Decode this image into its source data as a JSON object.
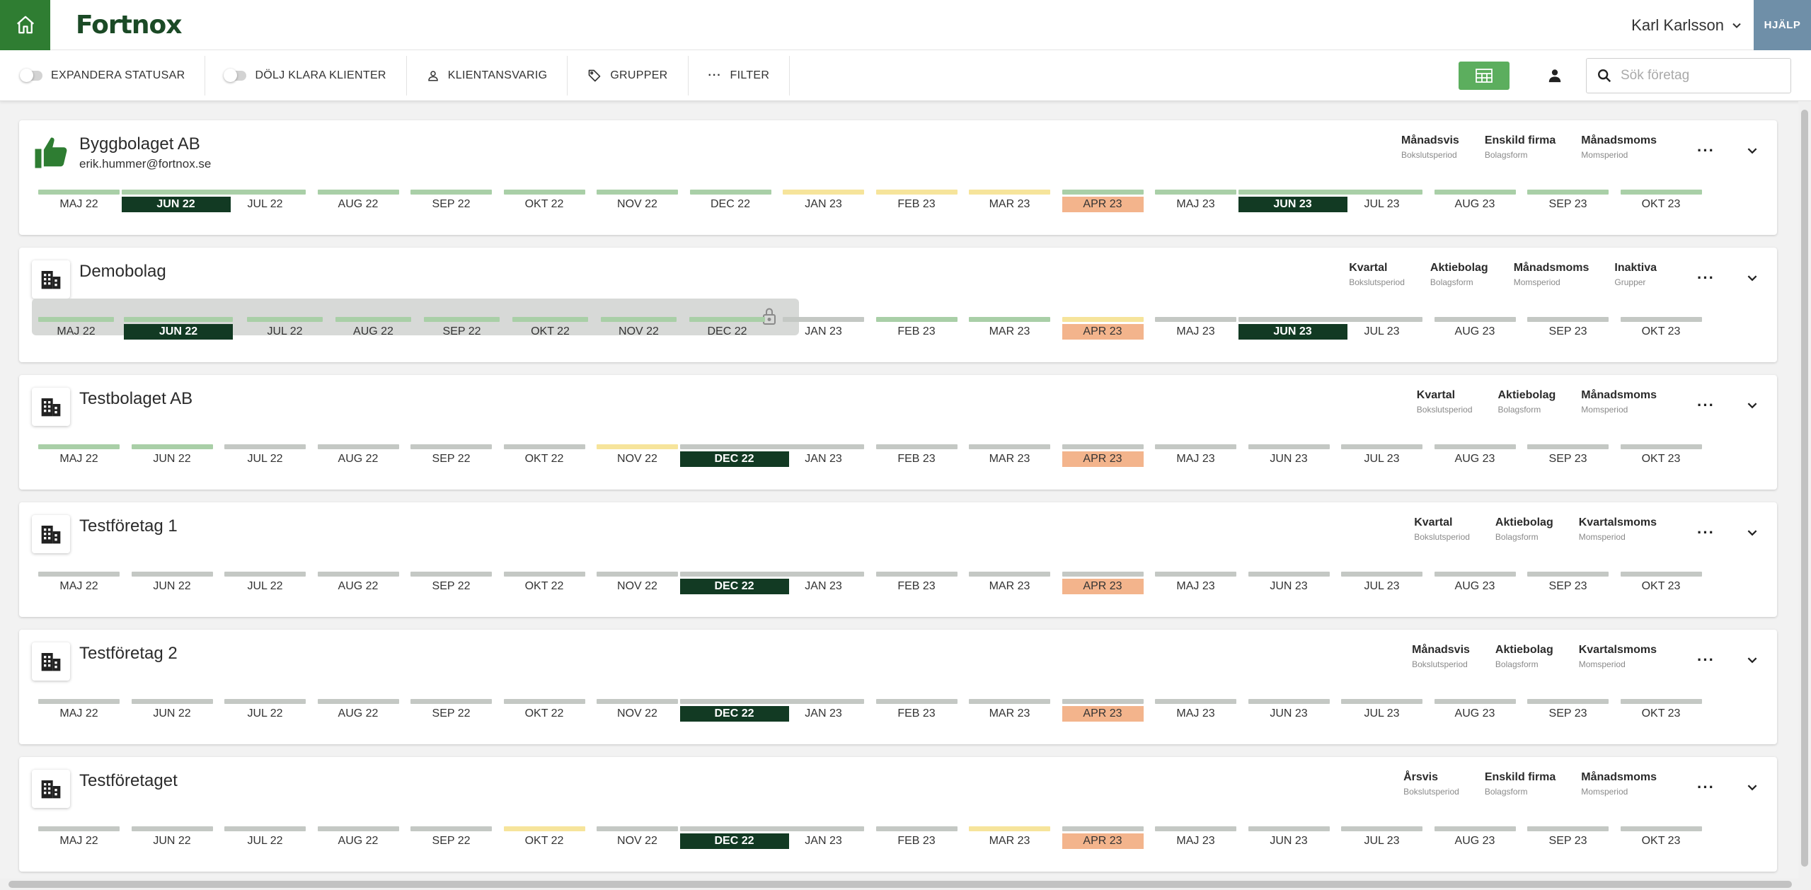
{
  "header": {
    "logo": "Fortnox",
    "user_name": "Karl Karlsson",
    "help_label": "HJÄLP"
  },
  "toolbar": {
    "expand_statuses": "EXPANDERA STATUSAR",
    "hide_done": "DÖLJ KLARA KLIENTER",
    "client_responsible": "KLIENTANSVARIG",
    "groups": "GRUPPER",
    "filter": "FILTER",
    "search_placeholder": "Sök företag"
  },
  "colors": {
    "brand_green": "#2f7d32",
    "current_month": "#123a23",
    "highlight_month": "#f3b48c",
    "status_green": "#a9cfa7",
    "status_yellow": "#f6e49b",
    "status_gray": "#c4c8c4"
  },
  "companies": [
    {
      "name": "Byggbolaget AB",
      "email": "erik.hummer@fortnox.se",
      "icon": "thumbs-up-icon",
      "locked_months": 0,
      "meta": [
        {
          "value": "Månadsvis",
          "label": "Bokslutsperiod"
        },
        {
          "value": "Enskild firma",
          "label": "Bolagsform"
        },
        {
          "value": "Månadsmoms",
          "label": "Momsperiod"
        }
      ],
      "months": [
        {
          "label": "MAJ 22",
          "bar": "green",
          "state": ""
        },
        {
          "label": "JUN 22",
          "bar": "green",
          "state": "current"
        },
        {
          "label": "JUL 22",
          "bar": "green",
          "state": ""
        },
        {
          "label": "AUG 22",
          "bar": "green",
          "state": ""
        },
        {
          "label": "SEP 22",
          "bar": "green",
          "state": ""
        },
        {
          "label": "OKT 22",
          "bar": "green",
          "state": ""
        },
        {
          "label": "NOV 22",
          "bar": "green",
          "state": ""
        },
        {
          "label": "DEC 22",
          "bar": "green",
          "state": ""
        },
        {
          "label": "JAN 23",
          "bar": "yellow",
          "state": ""
        },
        {
          "label": "FEB 23",
          "bar": "yellow",
          "state": ""
        },
        {
          "label": "MAR 23",
          "bar": "yellow",
          "state": ""
        },
        {
          "label": "APR 23",
          "bar": "green",
          "state": "peach"
        },
        {
          "label": "MAJ 23",
          "bar": "green",
          "state": ""
        },
        {
          "label": "JUN 23",
          "bar": "green",
          "state": "current"
        },
        {
          "label": "JUL 23",
          "bar": "green",
          "state": ""
        },
        {
          "label": "AUG 23",
          "bar": "green",
          "state": ""
        },
        {
          "label": "SEP 23",
          "bar": "green",
          "state": ""
        },
        {
          "label": "OKT 23",
          "bar": "green",
          "state": ""
        }
      ]
    },
    {
      "name": "Demobolag",
      "email": "",
      "icon": "building-icon",
      "locked_months": 8,
      "meta": [
        {
          "value": "Kvartal",
          "label": "Bokslutsperiod"
        },
        {
          "value": "Aktiebolag",
          "label": "Bolagsform"
        },
        {
          "value": "Månadsmoms",
          "label": "Momsperiod"
        },
        {
          "value": "Inaktiva",
          "label": "Grupper"
        }
      ],
      "months": [
        {
          "label": "MAJ 22",
          "bar": "green",
          "state": ""
        },
        {
          "label": "JUN 22",
          "bar": "green",
          "state": "current"
        },
        {
          "label": "JUL 22",
          "bar": "green",
          "state": ""
        },
        {
          "label": "AUG 22",
          "bar": "green",
          "state": ""
        },
        {
          "label": "SEP 22",
          "bar": "green",
          "state": ""
        },
        {
          "label": "OKT 22",
          "bar": "green",
          "state": ""
        },
        {
          "label": "NOV 22",
          "bar": "green",
          "state": ""
        },
        {
          "label": "DEC 22",
          "bar": "green",
          "state": ""
        },
        {
          "label": "JAN 23",
          "bar": "gray",
          "state": ""
        },
        {
          "label": "FEB 23",
          "bar": "green",
          "state": ""
        },
        {
          "label": "MAR 23",
          "bar": "green",
          "state": ""
        },
        {
          "label": "APR 23",
          "bar": "yellow",
          "state": "peach"
        },
        {
          "label": "MAJ 23",
          "bar": "gray",
          "state": ""
        },
        {
          "label": "JUN 23",
          "bar": "gray",
          "state": "current"
        },
        {
          "label": "JUL 23",
          "bar": "gray",
          "state": ""
        },
        {
          "label": "AUG 23",
          "bar": "gray",
          "state": ""
        },
        {
          "label": "SEP 23",
          "bar": "gray",
          "state": ""
        },
        {
          "label": "OKT 23",
          "bar": "gray",
          "state": ""
        }
      ]
    },
    {
      "name": "Testbolaget AB",
      "email": "",
      "icon": "building-icon",
      "locked_months": 0,
      "meta": [
        {
          "value": "Kvartal",
          "label": "Bokslutsperiod"
        },
        {
          "value": "Aktiebolag",
          "label": "Bolagsform"
        },
        {
          "value": "Månadsmoms",
          "label": "Momsperiod"
        }
      ],
      "months": [
        {
          "label": "MAJ 22",
          "bar": "green",
          "state": ""
        },
        {
          "label": "JUN 22",
          "bar": "green",
          "state": ""
        },
        {
          "label": "JUL 22",
          "bar": "gray",
          "state": ""
        },
        {
          "label": "AUG 22",
          "bar": "gray",
          "state": ""
        },
        {
          "label": "SEP 22",
          "bar": "gray",
          "state": ""
        },
        {
          "label": "OKT 22",
          "bar": "gray",
          "state": ""
        },
        {
          "label": "NOV 22",
          "bar": "yellow",
          "state": ""
        },
        {
          "label": "DEC 22",
          "bar": "gray",
          "state": "current"
        },
        {
          "label": "JAN 23",
          "bar": "gray",
          "state": ""
        },
        {
          "label": "FEB 23",
          "bar": "gray",
          "state": ""
        },
        {
          "label": "MAR 23",
          "bar": "gray",
          "state": ""
        },
        {
          "label": "APR 23",
          "bar": "gray",
          "state": "peach"
        },
        {
          "label": "MAJ 23",
          "bar": "gray",
          "state": ""
        },
        {
          "label": "JUN 23",
          "bar": "gray",
          "state": ""
        },
        {
          "label": "JUL 23",
          "bar": "gray",
          "state": ""
        },
        {
          "label": "AUG 23",
          "bar": "gray",
          "state": ""
        },
        {
          "label": "SEP 23",
          "bar": "gray",
          "state": ""
        },
        {
          "label": "OKT 23",
          "bar": "gray",
          "state": ""
        }
      ]
    },
    {
      "name": "Testföretag 1",
      "email": "",
      "icon": "building-icon",
      "locked_months": 0,
      "meta": [
        {
          "value": "Kvartal",
          "label": "Bokslutsperiod"
        },
        {
          "value": "Aktiebolag",
          "label": "Bolagsform"
        },
        {
          "value": "Kvartalsmoms",
          "label": "Momsperiod"
        }
      ],
      "months": [
        {
          "label": "MAJ 22",
          "bar": "gray",
          "state": ""
        },
        {
          "label": "JUN 22",
          "bar": "gray",
          "state": ""
        },
        {
          "label": "JUL 22",
          "bar": "gray",
          "state": ""
        },
        {
          "label": "AUG 22",
          "bar": "gray",
          "state": ""
        },
        {
          "label": "SEP 22",
          "bar": "gray",
          "state": ""
        },
        {
          "label": "OKT 22",
          "bar": "gray",
          "state": ""
        },
        {
          "label": "NOV 22",
          "bar": "gray",
          "state": ""
        },
        {
          "label": "DEC 22",
          "bar": "gray",
          "state": "current"
        },
        {
          "label": "JAN 23",
          "bar": "gray",
          "state": ""
        },
        {
          "label": "FEB 23",
          "bar": "gray",
          "state": ""
        },
        {
          "label": "MAR 23",
          "bar": "gray",
          "state": ""
        },
        {
          "label": "APR 23",
          "bar": "gray",
          "state": "peach"
        },
        {
          "label": "MAJ 23",
          "bar": "gray",
          "state": ""
        },
        {
          "label": "JUN 23",
          "bar": "gray",
          "state": ""
        },
        {
          "label": "JUL 23",
          "bar": "gray",
          "state": ""
        },
        {
          "label": "AUG 23",
          "bar": "gray",
          "state": ""
        },
        {
          "label": "SEP 23",
          "bar": "gray",
          "state": ""
        },
        {
          "label": "OKT 23",
          "bar": "gray",
          "state": ""
        }
      ]
    },
    {
      "name": "Testföretag 2",
      "email": "",
      "icon": "building-icon",
      "locked_months": 0,
      "meta": [
        {
          "value": "Månadsvis",
          "label": "Bokslutsperiod"
        },
        {
          "value": "Aktiebolag",
          "label": "Bolagsform"
        },
        {
          "value": "Kvartalsmoms",
          "label": "Momsperiod"
        }
      ],
      "months": [
        {
          "label": "MAJ 22",
          "bar": "gray",
          "state": ""
        },
        {
          "label": "JUN 22",
          "bar": "gray",
          "state": ""
        },
        {
          "label": "JUL 22",
          "bar": "gray",
          "state": ""
        },
        {
          "label": "AUG 22",
          "bar": "gray",
          "state": ""
        },
        {
          "label": "SEP 22",
          "bar": "gray",
          "state": ""
        },
        {
          "label": "OKT 22",
          "bar": "gray",
          "state": ""
        },
        {
          "label": "NOV 22",
          "bar": "gray",
          "state": ""
        },
        {
          "label": "DEC 22",
          "bar": "gray",
          "state": "current"
        },
        {
          "label": "JAN 23",
          "bar": "gray",
          "state": ""
        },
        {
          "label": "FEB 23",
          "bar": "gray",
          "state": ""
        },
        {
          "label": "MAR 23",
          "bar": "gray",
          "state": ""
        },
        {
          "label": "APR 23",
          "bar": "gray",
          "state": "peach"
        },
        {
          "label": "MAJ 23",
          "bar": "gray",
          "state": ""
        },
        {
          "label": "JUN 23",
          "bar": "gray",
          "state": ""
        },
        {
          "label": "JUL 23",
          "bar": "gray",
          "state": ""
        },
        {
          "label": "AUG 23",
          "bar": "gray",
          "state": ""
        },
        {
          "label": "SEP 23",
          "bar": "gray",
          "state": ""
        },
        {
          "label": "OKT 23",
          "bar": "gray",
          "state": ""
        }
      ]
    },
    {
      "name": "Testföretaget",
      "email": "",
      "icon": "building-icon",
      "locked_months": 0,
      "meta": [
        {
          "value": "Årsvis",
          "label": "Bokslutsperiod"
        },
        {
          "value": "Enskild firma",
          "label": "Bolagsform"
        },
        {
          "value": "Månadsmoms",
          "label": "Momsperiod"
        }
      ],
      "months": [
        {
          "label": "MAJ 22",
          "bar": "gray",
          "state": ""
        },
        {
          "label": "JUN 22",
          "bar": "gray",
          "state": ""
        },
        {
          "label": "JUL 22",
          "bar": "gray",
          "state": ""
        },
        {
          "label": "AUG 22",
          "bar": "gray",
          "state": ""
        },
        {
          "label": "SEP 22",
          "bar": "gray",
          "state": ""
        },
        {
          "label": "OKT 22",
          "bar": "yellow",
          "state": ""
        },
        {
          "label": "NOV 22",
          "bar": "gray",
          "state": ""
        },
        {
          "label": "DEC 22",
          "bar": "gray",
          "state": "current"
        },
        {
          "label": "JAN 23",
          "bar": "gray",
          "state": ""
        },
        {
          "label": "FEB 23",
          "bar": "gray",
          "state": ""
        },
        {
          "label": "MAR 23",
          "bar": "yellow",
          "state": ""
        },
        {
          "label": "APR 23",
          "bar": "gray",
          "state": "peach"
        },
        {
          "label": "MAJ 23",
          "bar": "gray",
          "state": ""
        },
        {
          "label": "JUN 23",
          "bar": "gray",
          "state": ""
        },
        {
          "label": "JUL 23",
          "bar": "gray",
          "state": ""
        },
        {
          "label": "AUG 23",
          "bar": "gray",
          "state": ""
        },
        {
          "label": "SEP 23",
          "bar": "gray",
          "state": ""
        },
        {
          "label": "OKT 23",
          "bar": "gray",
          "state": ""
        }
      ]
    }
  ]
}
